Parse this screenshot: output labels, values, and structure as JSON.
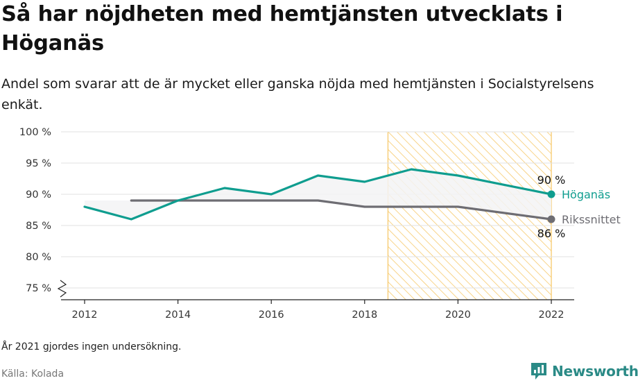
{
  "header": {
    "title": "Så har nöjdheten med hemtjänsten utvecklats i Höganäs",
    "subtitle": "Andel som svarar att de är mycket eller ganska nöjda med hemtjänsten i Socialstyrelsens enkät."
  },
  "footer": {
    "note": "År 2021 gjordes ingen undersökning.",
    "source": "Källa: Kolada",
    "brand": "Newsworthy"
  },
  "colors": {
    "hoganas": "#0f9d8f",
    "riket": "#6e6d73",
    "highlight": "#f7c96b",
    "brand": "#2a8a86"
  },
  "chart_data": {
    "type": "line",
    "ylim": [
      75,
      100
    ],
    "xlim": [
      2011.5,
      2022.5
    ],
    "yticks": [
      75,
      80,
      85,
      90,
      95,
      100
    ],
    "ytick_labels": [
      "75 %",
      "80 %",
      "85 %",
      "90 %",
      "95 %",
      "100 %"
    ],
    "xticks": [
      2012,
      2014,
      2016,
      2018,
      2020,
      2022
    ],
    "xtick_labels": [
      "2012",
      "2014",
      "2016",
      "2018",
      "2020",
      "2022"
    ],
    "y_axis_break": true,
    "grid": true,
    "highlight_range": [
      2018.5,
      2022
    ],
    "series": [
      {
        "name": "Höganäs",
        "x": [
          2012,
          2013,
          2014,
          2015,
          2016,
          2017,
          2018,
          2019,
          2020,
          2022
        ],
        "values": [
          88,
          86,
          89,
          91,
          90,
          93,
          92,
          94,
          93,
          90
        ],
        "end_label": "90 %"
      },
      {
        "name": "Rikssnittet",
        "x": [
          2013,
          2014,
          2015,
          2016,
          2017,
          2018,
          2019,
          2020,
          2022
        ],
        "values": [
          89,
          89,
          89,
          89,
          89,
          88,
          88,
          88,
          86
        ],
        "end_label": "86 %"
      }
    ]
  }
}
